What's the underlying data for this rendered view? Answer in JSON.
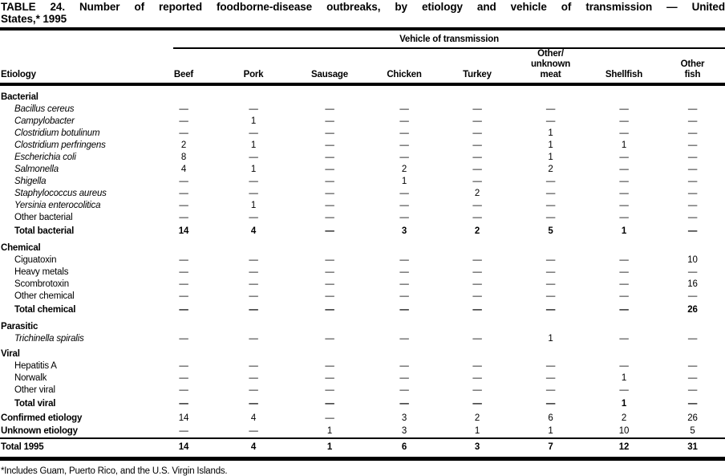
{
  "title": {
    "line1": "TABLE 24. Number of reported foodborne-disease outbreaks, by etiology and vehicle of transmission — United",
    "line2": "States,* 1995"
  },
  "table": {
    "spanner": "Vehicle of transmission",
    "columns": [
      {
        "id": "etiology",
        "lines": [
          "Etiology"
        ]
      },
      {
        "id": "beef",
        "lines": [
          "Beef"
        ]
      },
      {
        "id": "pork",
        "lines": [
          "Pork"
        ]
      },
      {
        "id": "sausage",
        "lines": [
          "Sausage"
        ]
      },
      {
        "id": "chicken",
        "lines": [
          "Chicken"
        ]
      },
      {
        "id": "turkey",
        "lines": [
          "Turkey"
        ]
      },
      {
        "id": "other-unknown-meat",
        "lines": [
          "Other/",
          "unknown",
          "meat"
        ]
      },
      {
        "id": "shellfish",
        "lines": [
          "Shellfish"
        ]
      },
      {
        "id": "other-fish",
        "lines": [
          "Other",
          "fish"
        ]
      }
    ],
    "rows": [
      {
        "type": "section",
        "label": "Bacterial"
      },
      {
        "type": "item",
        "italic": true,
        "label": "Bacillus cereus",
        "values": [
          "—",
          "—",
          "—",
          "—",
          "—",
          "—",
          "—",
          "—"
        ]
      },
      {
        "type": "item",
        "italic": true,
        "label": "Campylobacter",
        "values": [
          "—",
          "1",
          "—",
          "—",
          "—",
          "—",
          "—",
          "—"
        ]
      },
      {
        "type": "item",
        "italic": true,
        "label": "Clostridium botulinum",
        "values": [
          "—",
          "—",
          "—",
          "—",
          "—",
          "1",
          "—",
          "—"
        ]
      },
      {
        "type": "item",
        "italic": true,
        "label": "Clostridium perfringens",
        "values": [
          "2",
          "1",
          "—",
          "—",
          "—",
          "1",
          "1",
          "—"
        ]
      },
      {
        "type": "item",
        "italic": true,
        "label": "Escherichia coli",
        "values": [
          "8",
          "—",
          "—",
          "—",
          "—",
          "1",
          "—",
          "—"
        ]
      },
      {
        "type": "item",
        "italic": true,
        "label": "Salmonella",
        "values": [
          "4",
          "1",
          "—",
          "2",
          "—",
          "2",
          "—",
          "—"
        ]
      },
      {
        "type": "item",
        "italic": true,
        "label": "Shigella",
        "values": [
          "—",
          "—",
          "—",
          "1",
          "—",
          "—",
          "—",
          "—"
        ]
      },
      {
        "type": "item",
        "italic": true,
        "label": "Staphylococcus aureus",
        "values": [
          "—",
          "—",
          "—",
          "—",
          "2",
          "—",
          "—",
          "—"
        ]
      },
      {
        "type": "item",
        "italic": true,
        "label": "Yersinia enterocolitica",
        "values": [
          "—",
          "1",
          "—",
          "—",
          "—",
          "—",
          "—",
          "—"
        ]
      },
      {
        "type": "item",
        "italic": false,
        "label": "Other bacterial",
        "values": [
          "—",
          "—",
          "—",
          "—",
          "—",
          "—",
          "—",
          "—"
        ]
      },
      {
        "type": "total",
        "label": "Total bacterial",
        "values": [
          "14",
          "4",
          "—",
          "3",
          "2",
          "5",
          "1",
          "—"
        ]
      },
      {
        "type": "section",
        "label": "Chemical"
      },
      {
        "type": "item",
        "italic": false,
        "label": "Ciguatoxin",
        "values": [
          "—",
          "—",
          "—",
          "—",
          "—",
          "—",
          "—",
          "10"
        ]
      },
      {
        "type": "item",
        "italic": false,
        "label": "Heavy metals",
        "values": [
          "—",
          "—",
          "—",
          "—",
          "—",
          "—",
          "—",
          "—"
        ]
      },
      {
        "type": "item",
        "italic": false,
        "label": "Scombrotoxin",
        "values": [
          "—",
          "—",
          "—",
          "—",
          "—",
          "—",
          "—",
          "16"
        ]
      },
      {
        "type": "item",
        "italic": false,
        "label": "Other chemical",
        "values": [
          "—",
          "—",
          "—",
          "—",
          "—",
          "—",
          "—",
          "—"
        ]
      },
      {
        "type": "total",
        "label": "Total chemical",
        "values": [
          "—",
          "—",
          "—",
          "—",
          "—",
          "—",
          "—",
          "26"
        ]
      },
      {
        "type": "section",
        "label": "Parasitic"
      },
      {
        "type": "item",
        "italic": true,
        "label": "Trichinella spiralis",
        "values": [
          "—",
          "—",
          "—",
          "—",
          "—",
          "1",
          "—",
          "—"
        ]
      },
      {
        "type": "section",
        "label": "Viral"
      },
      {
        "type": "item",
        "italic": false,
        "label": "Hepatitis A",
        "values": [
          "—",
          "—",
          "—",
          "—",
          "—",
          "—",
          "—",
          "—"
        ]
      },
      {
        "type": "item",
        "italic": false,
        "label": "Norwalk",
        "values": [
          "—",
          "—",
          "—",
          "—",
          "—",
          "—",
          "1",
          "—"
        ]
      },
      {
        "type": "item",
        "italic": false,
        "label": "Other viral",
        "values": [
          "—",
          "—",
          "—",
          "—",
          "—",
          "—",
          "—",
          "—"
        ]
      },
      {
        "type": "total",
        "label": "Total viral",
        "values": [
          "—",
          "—",
          "—",
          "—",
          "—",
          "—",
          "1",
          "—"
        ]
      },
      {
        "type": "summary",
        "label": "Confirmed etiology",
        "values": [
          "14",
          "4",
          "—",
          "3",
          "2",
          "6",
          "2",
          "26"
        ]
      },
      {
        "type": "summary",
        "label": "Unknown etiology",
        "values": [
          "—",
          "—",
          "1",
          "3",
          "1",
          "1",
          "10",
          "5"
        ]
      },
      {
        "type": "grand",
        "label": "Total 1995",
        "values": [
          "14",
          "4",
          "1",
          "6",
          "3",
          "7",
          "12",
          "31"
        ]
      }
    ]
  },
  "footnote": "*Includes Guam, Puerto Rico, and the U.S. Virgin Islands."
}
